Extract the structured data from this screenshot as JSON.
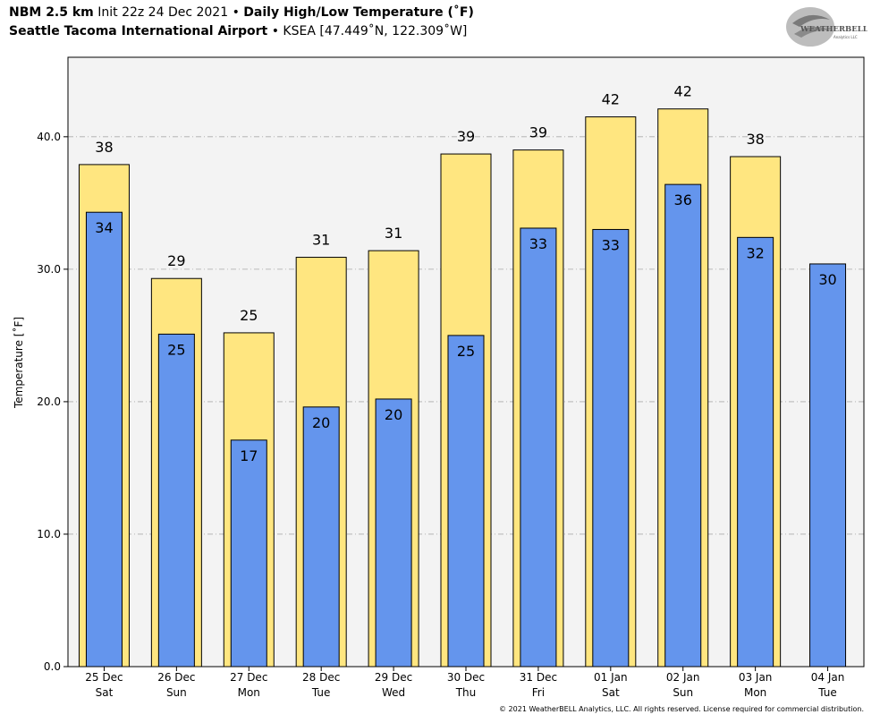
{
  "header": {
    "model": "NBM 2.5 km",
    "init": "Init 22z 24 Dec 2021",
    "sep1": "•",
    "product": "Daily High/Low Temperature (˚F)",
    "station_name": "Seattle Tacoma International Airport",
    "sep2": "•",
    "station_info": "KSEA [47.449˚N, 122.309˚W]"
  },
  "logo": {
    "line1": "WEATHERBELL",
    "line2": "Analytics LLC"
  },
  "copyright": "© 2021 WeatherBELL Analytics, LLC. All rights reserved. License required for commercial distribution.",
  "colors": {
    "high": "#ffe680",
    "low": "#6495ed",
    "plot_bg": "#f3f3f3",
    "grid": "#aaaaaa"
  },
  "chart_data": {
    "type": "bar",
    "ylabel": "Temperature [˚F]",
    "ylim": [
      0,
      46
    ],
    "yticks": [
      0,
      10,
      20,
      30,
      40
    ],
    "ytick_labels": [
      "0.0",
      "10.0",
      "20.0",
      "30.0",
      "40.0"
    ],
    "grid": true,
    "categories": [
      [
        "25 Dec",
        "Sat"
      ],
      [
        "26 Dec",
        "Sun"
      ],
      [
        "27 Dec",
        "Mon"
      ],
      [
        "28 Dec",
        "Tue"
      ],
      [
        "29 Dec",
        "Wed"
      ],
      [
        "30 Dec",
        "Thu"
      ],
      [
        "31 Dec",
        "Fri"
      ],
      [
        "01 Jan",
        "Sat"
      ],
      [
        "02 Jan",
        "Sun"
      ],
      [
        "03 Jan",
        "Mon"
      ],
      [
        "04 Jan",
        "Tue"
      ]
    ],
    "series": [
      {
        "key": "high",
        "values": [
          37.9,
          29.3,
          25.2,
          30.9,
          31.4,
          38.7,
          39.0,
          41.5,
          42.1,
          38.5,
          null
        ],
        "labels": [
          "38",
          "29",
          "25",
          "31",
          "31",
          "39",
          "39",
          "42",
          "42",
          "38",
          ""
        ]
      },
      {
        "key": "low",
        "values": [
          34.3,
          25.1,
          17.1,
          19.6,
          20.2,
          25.0,
          33.1,
          33.0,
          36.4,
          32.4,
          30.4
        ],
        "labels": [
          "34",
          "25",
          "17",
          "20",
          "20",
          "25",
          "33",
          "33",
          "36",
          "32",
          "30"
        ]
      }
    ]
  }
}
